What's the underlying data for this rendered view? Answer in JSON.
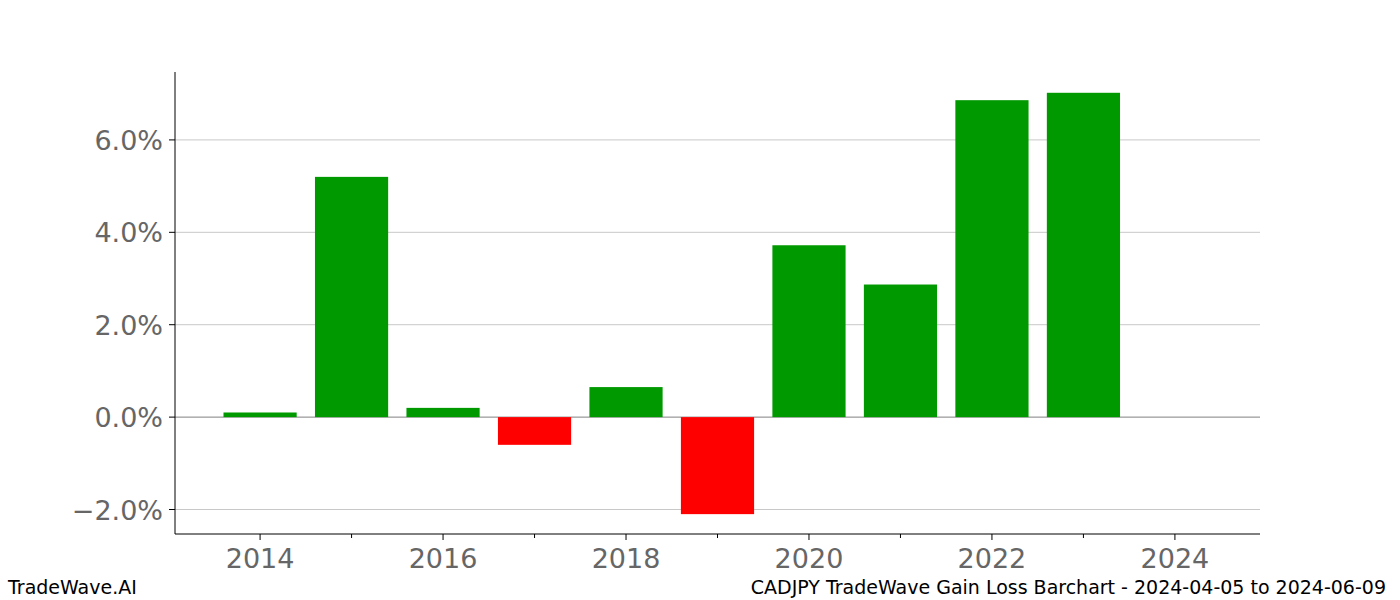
{
  "chart_data": {
    "type": "bar",
    "title": "CADJPY TradeWave Gain Loss Barchart - 2024-04-05 to 2024-06-09",
    "annotations": [
      "TradeWave.AI"
    ],
    "x": [
      2014,
      2015,
      2016,
      2017,
      2018,
      2019,
      2020,
      2021,
      2022,
      2023
    ],
    "values": [
      0.1,
      5.2,
      0.2,
      -0.6,
      0.65,
      -2.1,
      3.72,
      2.87,
      6.86,
      7.02
    ],
    "colors": [
      "#009900",
      "#009900",
      "#009900",
      "#ff0000",
      "#009900",
      "#ff0000",
      "#009900",
      "#009900",
      "#009900",
      "#009900"
    ],
    "xlim": [
      2013.07,
      2024.93
    ],
    "xticks": [
      2014,
      2016,
      2018,
      2020,
      2022,
      2024
    ],
    "ylim": [
      -2.53,
      7.47
    ],
    "yticks": [
      {
        "value": -2,
        "label": "−2.0%"
      },
      {
        "value": 0,
        "label": "0.0%"
      },
      {
        "value": 2,
        "label": "2.0%"
      },
      {
        "value": 4,
        "label": "4.0%"
      },
      {
        "value": 6,
        "label": "6.0%"
      }
    ],
    "grid": true
  }
}
